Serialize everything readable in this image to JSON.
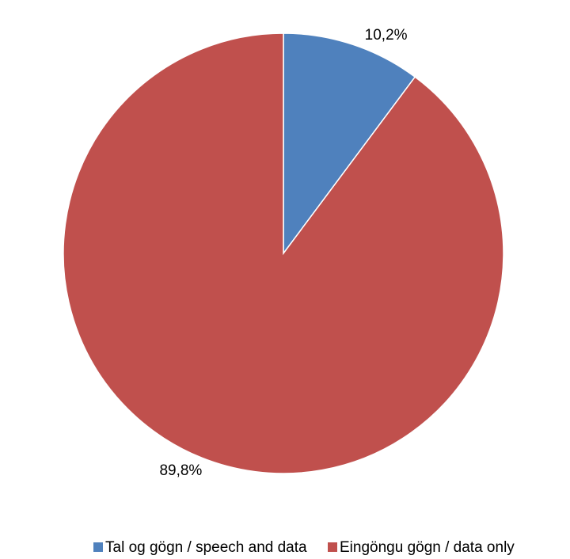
{
  "chart_data": {
    "type": "pie",
    "categories": [
      "Tal og gögn / speech and data",
      "Eingöngu gögn / data only"
    ],
    "values": [
      10.2,
      89.8
    ],
    "value_labels": [
      "10,2%",
      "89,8%"
    ],
    "colors": [
      "#4f81bd",
      "#c0504d"
    ],
    "legend": "bottom"
  }
}
